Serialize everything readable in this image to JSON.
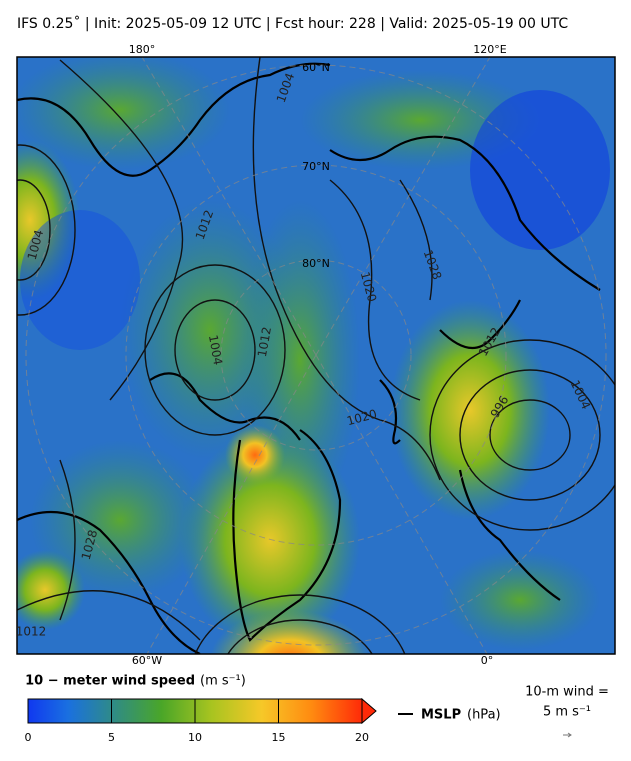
{
  "header": {
    "title": "IFS 0.25˚  |  Init: 2025-05-09 12 UTC  |  Fcst hour: 228  |  Valid: 2025-05-19 00 UTC"
  },
  "map": {
    "lon_labels_top": [
      "180°",
      "120°E"
    ],
    "lon_labels_bottom": [
      "60°W",
      "0°"
    ],
    "lat_labels": [
      "60°N",
      "70°N",
      "80°N"
    ],
    "contour_labels": [
      "1004",
      "1012",
      "1004",
      "1012",
      "1004",
      "1020",
      "1028",
      "1020",
      "1012",
      "996",
      "1004",
      "1028",
      "1012"
    ]
  },
  "colorbar": {
    "label": "10 − meter wind speed",
    "unit": "(m s⁻¹)",
    "ticks": [
      0,
      5,
      10,
      15,
      20
    ]
  },
  "mslp_legend": {
    "label": "MSLP",
    "unit": "(hPa)"
  },
  "wind_legend": {
    "line1": "10-m wind =",
    "line2": "5 m s⁻¹"
  }
}
